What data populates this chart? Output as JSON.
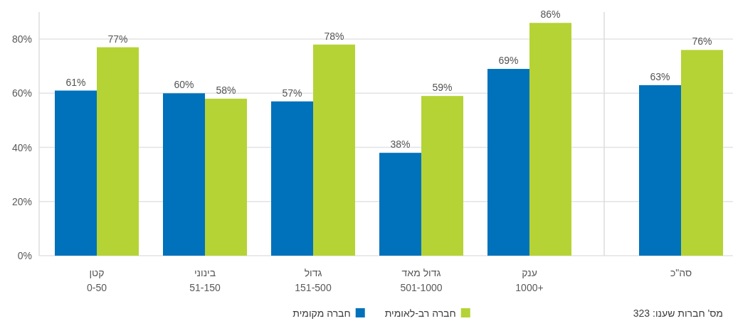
{
  "chart_data": [
    {
      "type": "bar",
      "categories": [
        "קטן\n0-50",
        "בינוני\n51-150",
        "גדול\n151-500",
        "גדול מאד\n501-1000",
        "ענק\n1000+"
      ],
      "series": [
        {
          "name": "חברה מקומית",
          "color": "#0071bb",
          "values": [
            61,
            60,
            57,
            38,
            69
          ],
          "value_labels": [
            "61%",
            "60%",
            "57%",
            "38%",
            "69%"
          ]
        },
        {
          "name": "חברה רב-לאומית",
          "color": "#b5d335",
          "values": [
            77,
            58,
            78,
            59,
            86
          ],
          "value_labels": [
            "77%",
            "58%",
            "78%",
            "59%",
            "86%"
          ]
        }
      ],
      "ylim": [
        0,
        90
      ],
      "yticks": [
        {
          "value": 0,
          "label": "0%"
        },
        {
          "value": 20,
          "label": "20%"
        },
        {
          "value": 40,
          "label": "40%"
        },
        {
          "value": 60,
          "label": "60%"
        },
        {
          "value": 80,
          "label": "80%"
        }
      ],
      "grid": "y",
      "legend": "bottom"
    },
    {
      "type": "bar",
      "categories": [
        "סה\"כ"
      ],
      "series": [
        {
          "color": "#0071bb",
          "values": [
            63
          ],
          "value_labels": [
            "63%"
          ]
        },
        {
          "color": "#b5d335",
          "values": [
            76
          ],
          "value_labels": [
            "76%"
          ]
        }
      ],
      "ylim": [
        0,
        90
      ],
      "yticks": [
        0,
        20,
        40,
        60,
        80
      ],
      "grid": "y",
      "tick_labels": "x",
      "annotations": [
        "מס' חברות שענו: 323"
      ]
    }
  ]
}
